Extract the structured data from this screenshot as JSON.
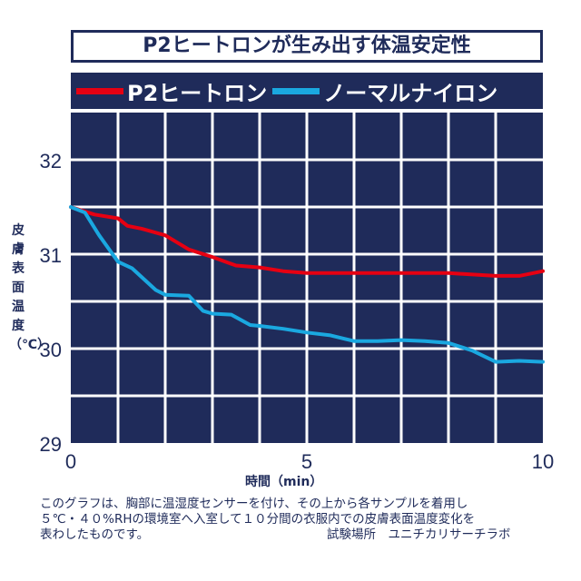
{
  "chart_data": {
    "type": "line",
    "title": "P2ヒートロンが生み出す体温安定性",
    "xlabel": "時間（min）",
    "ylabel": "皮膚表面温度（℃）",
    "xlim": [
      0,
      10
    ],
    "ylim": [
      29,
      32.5
    ],
    "xticks": [
      "0",
      "5",
      "10"
    ],
    "yticks": [
      "29",
      "30",
      "31",
      "32"
    ],
    "grid": true,
    "legend_position": "top",
    "series": [
      {
        "name": "P2ヒートロン",
        "color": "#e60012",
        "x": [
          0,
          0.5,
          1,
          1.2,
          1.5,
          2,
          2.5,
          3,
          3.5,
          4,
          4.5,
          5,
          6,
          7,
          8,
          9,
          9.5,
          10
        ],
        "y": [
          31.5,
          31.42,
          31.38,
          31.3,
          31.27,
          31.2,
          31.05,
          30.97,
          30.88,
          30.86,
          30.82,
          30.8,
          30.8,
          30.8,
          30.8,
          30.77,
          30.77,
          30.82
        ]
      },
      {
        "name": "ノーマルナイロン",
        "color": "#1aa8e0",
        "x": [
          0,
          0.3,
          0.6,
          1,
          1.3,
          1.8,
          2,
          2.5,
          2.8,
          3,
          3.4,
          3.8,
          4,
          4.5,
          5,
          5.5,
          6,
          6.5,
          7,
          7.5,
          8,
          8.5,
          9,
          9.5,
          10
        ],
        "y": [
          31.5,
          31.44,
          31.2,
          30.92,
          30.85,
          30.62,
          30.57,
          30.56,
          30.4,
          30.37,
          30.36,
          30.25,
          30.24,
          30.21,
          30.17,
          30.14,
          30.08,
          30.08,
          30.09,
          30.08,
          30.06,
          29.98,
          29.86,
          29.87,
          29.86
        ]
      }
    ]
  },
  "note": "このグラフは、胸部に温湿度センサーを付け、その上から各サンプルを着用し\n５℃・４０%RHの環境室へ入室して１０分間の衣服内での皮膚表面温度変化を\n表わしたものです。",
  "source": "試験場所　ユニチカリサーチラボ",
  "colors": {
    "navy": "#1f2b5a"
  }
}
